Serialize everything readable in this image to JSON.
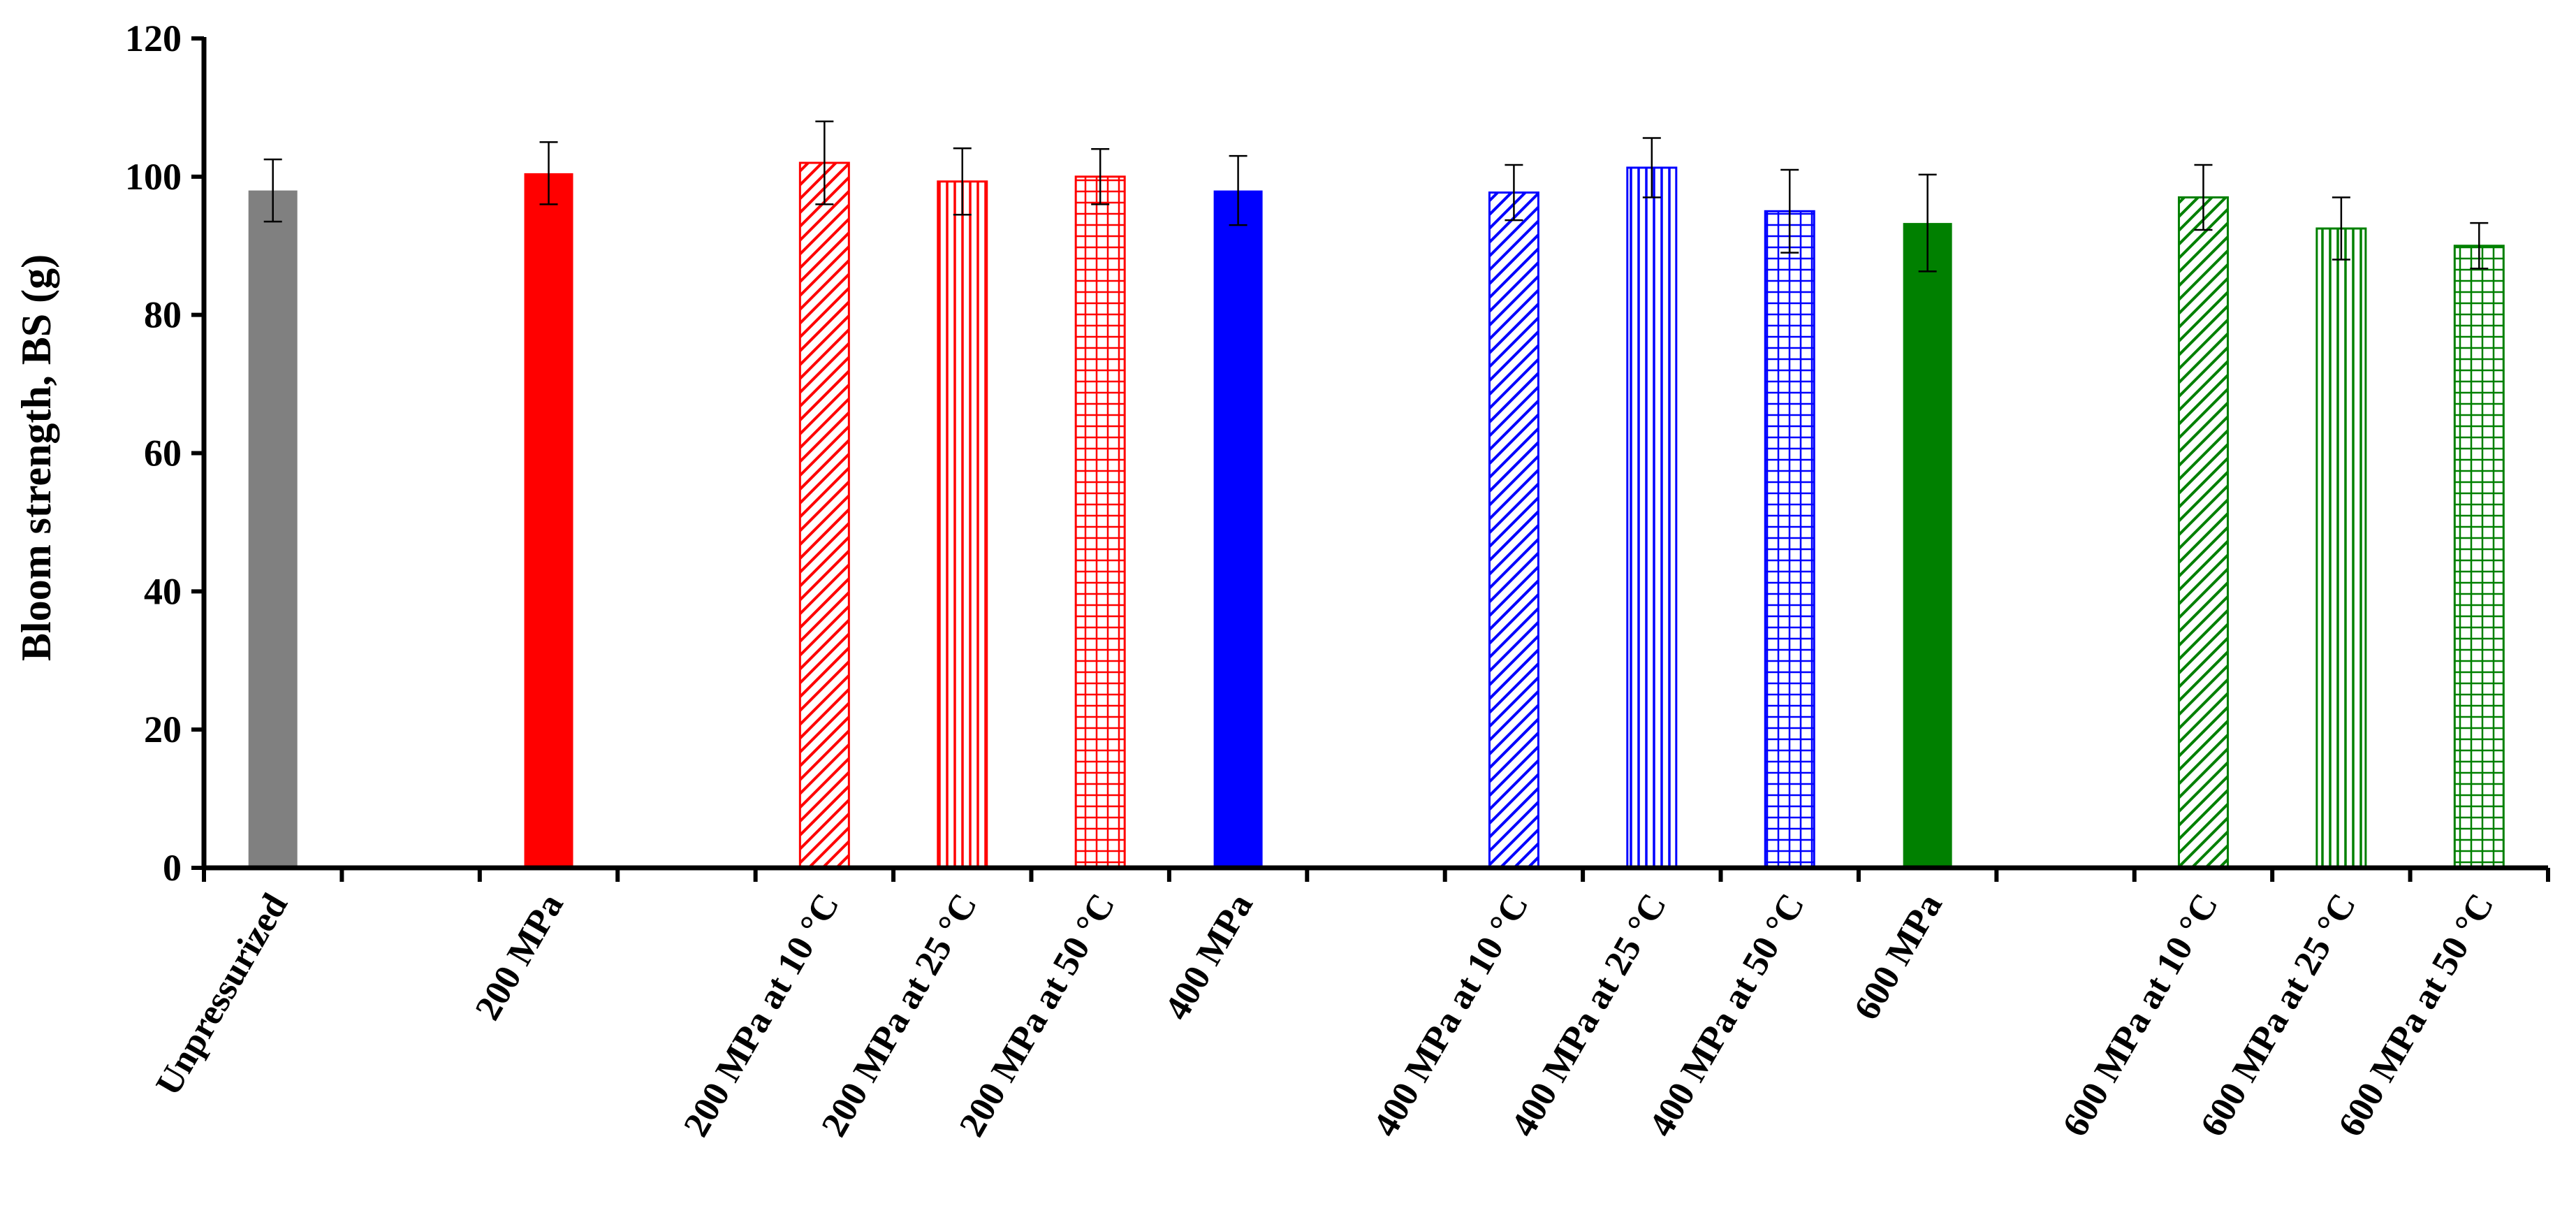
{
  "chart_data": {
    "type": "bar",
    "title": "",
    "xlabel": "",
    "ylabel": "Bloom strength, BS (g)",
    "ylim": [
      0,
      120
    ],
    "yticks": [
      0,
      20,
      40,
      60,
      80,
      100,
      120
    ],
    "grid": false,
    "legend": "none",
    "categories": [
      "Unpressurized",
      "",
      "200 MPa",
      "",
      "200 MPa at 10 °C",
      "200 MPa at 25 °C",
      "200 MPa at 50 °C",
      "400 MPa",
      "",
      "400 MPa at 10 °C",
      "400 MPa at 25 °C",
      "400 MPa at 50 °C",
      "600 MPa",
      "",
      "600 MPa at 10 °C",
      "600 MPa at 25 °C",
      "600 MPa at 50 °C"
    ],
    "bars": [
      {
        "category": "Unpressurized",
        "value": 98.0,
        "error": 4.5,
        "color": "#808080",
        "pattern": "solid"
      },
      {
        "category": "200 MPa",
        "value": 100.5,
        "error": 4.5,
        "color": "#ff0000",
        "pattern": "solid"
      },
      {
        "category": "200 MPa at 10 °C",
        "value": 102.0,
        "error": 6.0,
        "color": "#ff0000",
        "pattern": "diagonal"
      },
      {
        "category": "200 MPa at 25 °C",
        "value": 99.3,
        "error": 4.8,
        "color": "#ff0000",
        "pattern": "vertical"
      },
      {
        "category": "200 MPa at 50 °C",
        "value": 100.0,
        "error": 4.0,
        "color": "#ff0000",
        "pattern": "grid"
      },
      {
        "category": "400 MPa",
        "value": 98.0,
        "error": 5.0,
        "color": "#0000ff",
        "pattern": "solid"
      },
      {
        "category": "400 MPa at 10 °C",
        "value": 97.7,
        "error": 4.0,
        "color": "#0000ff",
        "pattern": "diagonal"
      },
      {
        "category": "400 MPa at 25 °C",
        "value": 101.3,
        "error": 4.3,
        "color": "#0000ff",
        "pattern": "vertical"
      },
      {
        "category": "400 MPa at 50 °C",
        "value": 95.0,
        "error": 6.0,
        "color": "#0000ff",
        "pattern": "grid"
      },
      {
        "category": "600 MPa",
        "value": 93.3,
        "error": 7.0,
        "color": "#008000",
        "pattern": "solid"
      },
      {
        "category": "600 MPa at 10 °C",
        "value": 97.0,
        "error": 4.7,
        "color": "#008000",
        "pattern": "diagonal"
      },
      {
        "category": "600 MPa at 25 °C",
        "value": 92.5,
        "error": 4.5,
        "color": "#008000",
        "pattern": "vertical"
      },
      {
        "category": "600 MPa at 50 °C",
        "value": 90.0,
        "error": 3.3,
        "color": "#008000",
        "pattern": "grid"
      }
    ]
  }
}
